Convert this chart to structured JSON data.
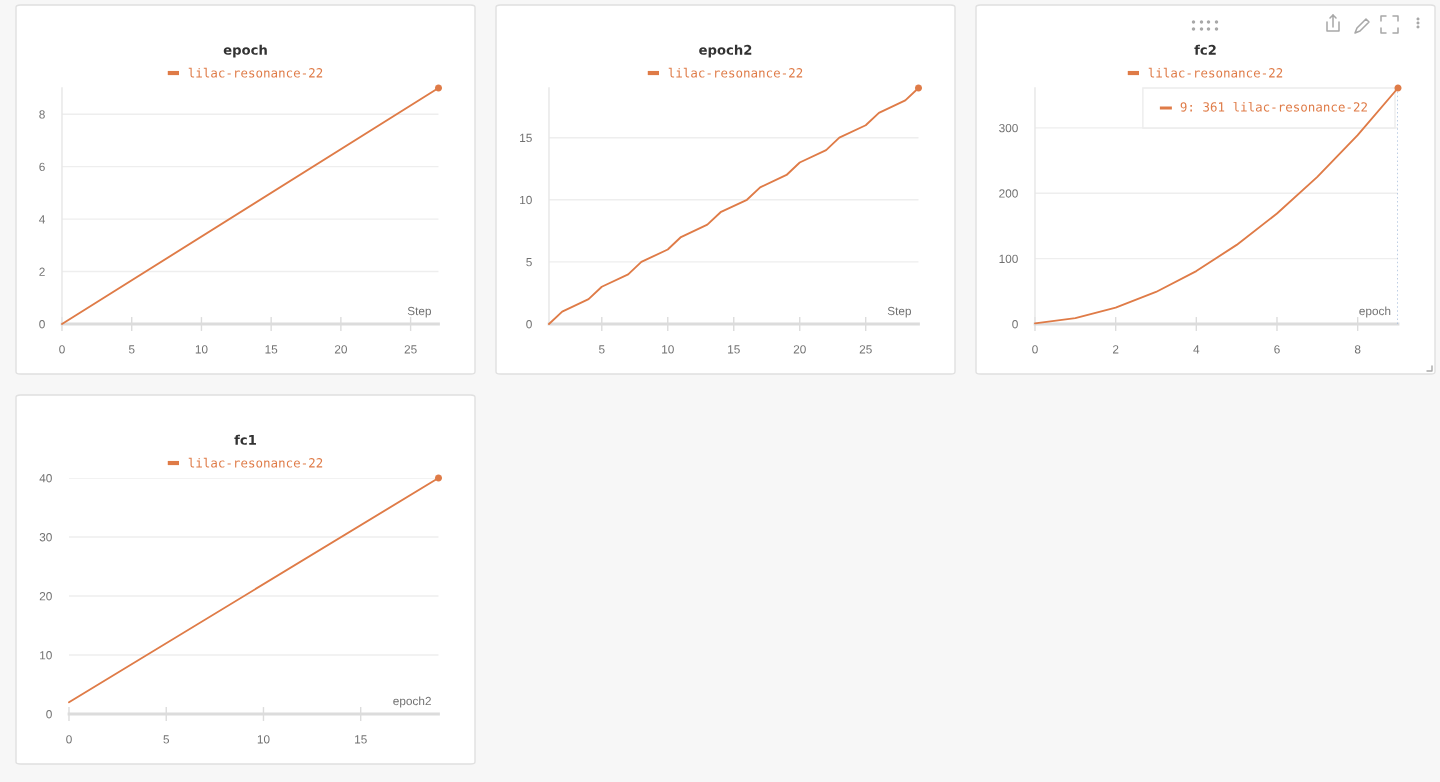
{
  "chart_data": [
    {
      "type": "line",
      "title": "epoch",
      "xlabel": "Step",
      "xlim": [
        0,
        27
      ],
      "xticks": [
        0,
        5,
        10,
        15,
        20,
        25
      ],
      "ylim": [
        0,
        9
      ],
      "yticks": [
        0,
        2,
        4,
        6,
        8
      ],
      "grid": "y",
      "legend": "top",
      "series": [
        {
          "name": "lilac-resonance-22",
          "color": "#df7b47",
          "x": [
            0,
            27
          ],
          "values": [
            0,
            9
          ]
        },
        {
          "type": "scatter",
          "marker": "circle",
          "color": "#df7b47",
          "x": [
            27
          ],
          "values": [
            9
          ]
        }
      ]
    },
    {
      "type": "line",
      "title": "epoch2",
      "xlabel": "Step",
      "xlim": [
        1,
        29
      ],
      "xticks": [
        5,
        10,
        15,
        20,
        25
      ],
      "ylim": [
        0,
        19
      ],
      "yticks": [
        0,
        5,
        10,
        15
      ],
      "grid": "y",
      "legend": "top",
      "series": [
        {
          "name": "lilac-resonance-22",
          "color": "#df7b47",
          "x": [
            1,
            2,
            4,
            5,
            7,
            8,
            10,
            11,
            13,
            14,
            16,
            17,
            19,
            20,
            22,
            23,
            25,
            26,
            28,
            29
          ],
          "values": [
            0,
            1,
            2,
            3,
            4,
            5,
            6,
            7,
            8,
            9,
            10,
            11,
            12,
            13,
            14,
            15,
            16,
            17,
            18,
            19
          ]
        },
        {
          "type": "scatter",
          "marker": "circle",
          "color": "#df7b47",
          "x": [
            29
          ],
          "values": [
            19
          ]
        }
      ]
    },
    {
      "type": "line",
      "title": "fc2",
      "xlabel": "epoch",
      "xlim": [
        0,
        9
      ],
      "xticks": [
        0,
        2,
        4,
        6,
        8
      ],
      "ylim": [
        0,
        361
      ],
      "yticks": [
        0,
        100,
        200,
        300
      ],
      "grid": "y",
      "legend": "top",
      "series": [
        {
          "name": "lilac-resonance-22",
          "color": "#df7b47",
          "x": [
            0,
            1,
            2,
            3,
            4,
            5,
            6,
            7,
            8,
            9
          ],
          "values": [
            1,
            9,
            25,
            49,
            81,
            121,
            169,
            225,
            289,
            361
          ]
        },
        {
          "type": "scatter",
          "marker": "circle",
          "color": "#df7b47",
          "x": [
            9
          ],
          "values": [
            361
          ]
        }
      ],
      "ref_lines": [
        {
          "axis": "x",
          "value": 9,
          "color": "#a9bfdc",
          "line_style": "dotted"
        }
      ],
      "annotations": [
        {
          "text": "9: 361 lilac-resonance-22",
          "x": 9,
          "y": 361
        }
      ]
    },
    {
      "type": "line",
      "title": "fc1",
      "xlabel": "epoch2",
      "xlim": [
        0,
        19
      ],
      "xticks": [
        0,
        5,
        10,
        15
      ],
      "ylim": [
        0,
        40
      ],
      "yticks": [
        0,
        10,
        20,
        30,
        40
      ],
      "grid": "y",
      "legend": "top",
      "series": [
        {
          "name": "lilac-resonance-22",
          "color": "#df7b47",
          "x": [
            0,
            19
          ],
          "values": [
            2,
            40
          ]
        },
        {
          "type": "scatter",
          "marker": "circle",
          "color": "#df7b47",
          "x": [
            19
          ],
          "values": [
            40
          ]
        }
      ]
    }
  ]
}
